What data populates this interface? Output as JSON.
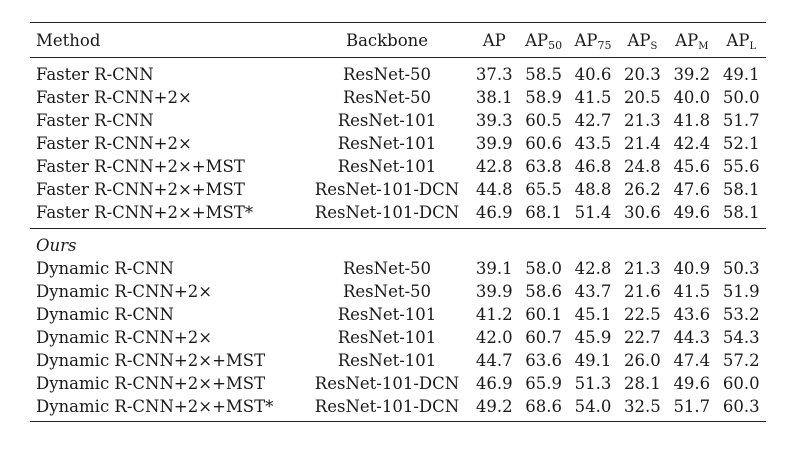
{
  "table": {
    "headers": {
      "method": "Method",
      "backbone": "Backbone",
      "ap": "AP",
      "ap50_base": "AP",
      "ap50_sub": "50",
      "ap75_base": "AP",
      "ap75_sub": "75",
      "aps_base": "AP",
      "aps_sub": "S",
      "apm_base": "AP",
      "apm_sub": "M",
      "apl_base": "AP",
      "apl_sub": "L"
    },
    "baseline_rows": [
      {
        "method": "Faster R-CNN",
        "backbone": "ResNet-50",
        "ap": "37.3",
        "ap50": "58.5",
        "ap75": "40.6",
        "aps": "20.3",
        "apm": "39.2",
        "apl": "49.1"
      },
      {
        "method": "Faster R-CNN+2×",
        "backbone": "ResNet-50",
        "ap": "38.1",
        "ap50": "58.9",
        "ap75": "41.5",
        "aps": "20.5",
        "apm": "40.0",
        "apl": "50.0"
      },
      {
        "method": "Faster R-CNN",
        "backbone": "ResNet-101",
        "ap": "39.3",
        "ap50": "60.5",
        "ap75": "42.7",
        "aps": "21.3",
        "apm": "41.8",
        "apl": "51.7"
      },
      {
        "method": "Faster R-CNN+2×",
        "backbone": "ResNet-101",
        "ap": "39.9",
        "ap50": "60.6",
        "ap75": "43.5",
        "aps": "21.4",
        "apm": "42.4",
        "apl": "52.1"
      },
      {
        "method": "Faster R-CNN+2×+MST",
        "backbone": "ResNet-101",
        "ap": "42.8",
        "ap50": "63.8",
        "ap75": "46.8",
        "aps": "24.8",
        "apm": "45.6",
        "apl": "55.6"
      },
      {
        "method": "Faster R-CNN+2×+MST",
        "backbone": "ResNet-101-DCN",
        "ap": "44.8",
        "ap50": "65.5",
        "ap75": "48.8",
        "aps": "26.2",
        "apm": "47.6",
        "apl": "58.1"
      },
      {
        "method": "Faster R-CNN+2×+MST*",
        "backbone": "ResNet-101-DCN",
        "ap": "46.9",
        "ap50": "68.1",
        "ap75": "51.4",
        "aps": "30.6",
        "apm": "49.6",
        "apl": "58.1"
      }
    ],
    "ours_label": "Ours",
    "ours_rows": [
      {
        "method": "Dynamic R-CNN",
        "backbone": "ResNet-50",
        "ap": "39.1",
        "ap50": "58.0",
        "ap75": "42.8",
        "aps": "21.3",
        "apm": "40.9",
        "apl": "50.3"
      },
      {
        "method": "Dynamic R-CNN+2×",
        "backbone": "ResNet-50",
        "ap": "39.9",
        "ap50": "58.6",
        "ap75": "43.7",
        "aps": "21.6",
        "apm": "41.5",
        "apl": "51.9"
      },
      {
        "method": "Dynamic R-CNN",
        "backbone": "ResNet-101",
        "ap": "41.2",
        "ap50": "60.1",
        "ap75": "45.1",
        "aps": "22.5",
        "apm": "43.6",
        "apl": "53.2"
      },
      {
        "method": "Dynamic R-CNN+2×",
        "backbone": "ResNet-101",
        "ap": "42.0",
        "ap50": "60.7",
        "ap75": "45.9",
        "aps": "22.7",
        "apm": "44.3",
        "apl": "54.3"
      },
      {
        "method": "Dynamic R-CNN+2×+MST",
        "backbone": "ResNet-101",
        "ap": "44.7",
        "ap50": "63.6",
        "ap75": "49.1",
        "aps": "26.0",
        "apm": "47.4",
        "apl": "57.2"
      },
      {
        "method": "Dynamic R-CNN+2×+MST",
        "backbone": "ResNet-101-DCN",
        "ap": "46.9",
        "ap50": "65.9",
        "ap75": "51.3",
        "aps": "28.1",
        "apm": "49.6",
        "apl": "60.0"
      },
      {
        "method": "Dynamic R-CNN+2×+MST*",
        "backbone": "ResNet-101-DCN",
        "ap": "49.2",
        "ap50": "68.6",
        "ap75": "54.0",
        "aps": "32.5",
        "apm": "51.7",
        "apl": "60.3"
      }
    ]
  }
}
